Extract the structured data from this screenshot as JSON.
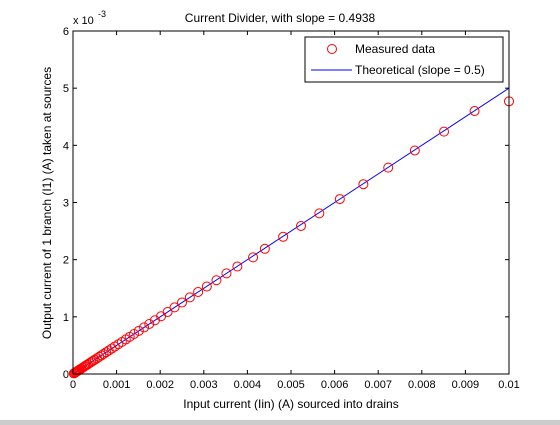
{
  "chart_data": {
    "type": "scatter",
    "title": "Current Divider, with slope = 0.4938",
    "xlabel": "Input current (Iin) (A) sourced into drains",
    "ylabel": "Output current of 1 branch (I1) (A) taken at sources",
    "xlim": [
      0,
      0.01
    ],
    "ylim": [
      0,
      0.006
    ],
    "y_exponent_label": "x 10",
    "y_exponent_power": "-3",
    "x_ticks": [
      0,
      0.001,
      0.002,
      0.003,
      0.004,
      0.005,
      0.006,
      0.007,
      0.008,
      0.009,
      0.01
    ],
    "x_tick_labels": [
      "0",
      "0.001",
      "0.002",
      "0.003",
      "0.004",
      "0.005",
      "0.006",
      "0.007",
      "0.008",
      "0.009",
      "0.01"
    ],
    "y_ticks": [
      0,
      0.001,
      0.002,
      0.003,
      0.004,
      0.005,
      0.006
    ],
    "y_tick_labels": [
      "0",
      "1",
      "2",
      "3",
      "4",
      "5",
      "6"
    ],
    "grid": false,
    "legend_placement": "top-right",
    "colors": {
      "measured": "#ff0000",
      "theoretical": "#0000ff"
    },
    "series": [
      {
        "name": "Measured data",
        "marker": "circle",
        "x": [
          2e-05,
          4e-05,
          6e-05,
          8e-05,
          0.0001,
          0.00012,
          0.00014,
          0.00016,
          0.00019,
          0.00022,
          0.00025,
          0.00028,
          0.00031,
          0.00034,
          0.00038,
          0.00042,
          0.00046,
          0.0005,
          0.00055,
          0.0006,
          0.00065,
          0.0007,
          0.00076,
          0.00082,
          0.00089,
          0.00096,
          0.00104,
          0.00112,
          0.00121,
          0.0013,
          0.0014,
          0.00151,
          0.00163,
          0.00175,
          0.00188,
          0.00202,
          0.00217,
          0.00233,
          0.0025,
          0.00268,
          0.00287,
          0.00307,
          0.00329,
          0.00352,
          0.00377,
          0.00413,
          0.0044,
          0.00482,
          0.00523,
          0.00565,
          0.00612,
          0.00666,
          0.00723,
          0.00784,
          0.00851,
          0.00921,
          0.01
        ],
        "y": [
          1e-05,
          2e-05,
          3e-05,
          4e-05,
          5e-05,
          6e-05,
          7e-05,
          8e-05,
          9.5e-05,
          0.00011,
          0.000125,
          0.00014,
          0.000155,
          0.00017,
          0.00019,
          0.00021,
          0.00023,
          0.00025,
          0.000275,
          0.0003,
          0.000325,
          0.00035,
          0.00038,
          0.00041,
          0.000445,
          0.00048,
          0.00052,
          0.00056,
          0.000605,
          0.00065,
          0.0007,
          0.000755,
          0.000815,
          0.000875,
          0.00094,
          0.00101,
          0.001085,
          0.001165,
          0.00125,
          0.00134,
          0.001435,
          0.00153,
          0.00164,
          0.00176,
          0.00188,
          0.00204,
          0.00219,
          0.0024,
          0.00259,
          0.00281,
          0.00306,
          0.00332,
          0.00361,
          0.00391,
          0.00424,
          0.0046,
          0.00477
        ]
      },
      {
        "name": "Theoretical (slope = 0.5)",
        "marker": "line",
        "x": [
          0,
          0.01
        ],
        "y": [
          0,
          0.005
        ]
      }
    ]
  }
}
